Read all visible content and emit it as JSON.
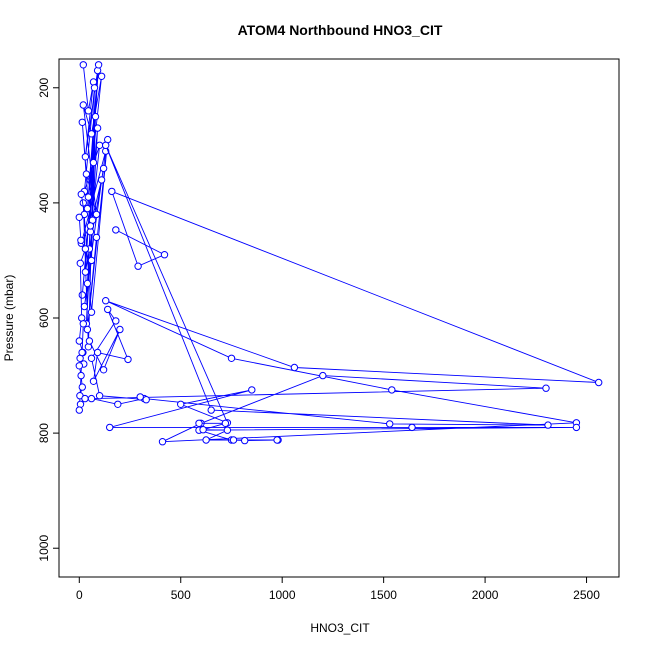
{
  "chart_data": {
    "type": "line",
    "title": "ATOM4 Northbound HNO3_CIT",
    "xlabel": "HNO3_CIT",
    "ylabel": "Pressure (mbar)",
    "xlim": [
      -100,
      2660
    ],
    "ylim": [
      1050,
      150
    ],
    "y_reversed": true,
    "x_ticks": [
      0,
      500,
      1000,
      1500,
      2000,
      2500
    ],
    "y_ticks": [
      200,
      400,
      600,
      800,
      1000
    ],
    "grid": false,
    "legend": "none",
    "series_color": "#0000ff",
    "marker": "open-circle",
    "series": [
      {
        "x": [
          20,
          45,
          70,
          30,
          90,
          40,
          110,
          60,
          20,
          85,
          35,
          15,
          55,
          100,
          25,
          75,
          50,
          120,
          30,
          95,
          45,
          65,
          10,
          130,
          40,
          80,
          60,
          25,
          110,
          55,
          35,
          90,
          15,
          70,
          45,
          20,
          60,
          140,
          40,
          85
        ],
        "y": [
          160,
          240,
          190,
          320,
          170,
          410,
          180,
          280,
          230,
          420,
          350,
          260,
          450,
          300,
          380,
          200,
          480,
          340,
          520,
          160,
          390,
          430,
          470,
          310,
          540,
          250,
          500,
          580,
          360,
          440,
          610,
          270,
          560,
          330,
          650,
          400,
          590,
          290,
          620,
          460
        ]
      },
      {
        "x": [
          10,
          25,
          0,
          8,
          30,
          5,
          12,
          0,
          18,
          4,
          22,
          0,
          9,
          15,
          3,
          28,
          6,
          0,
          14,
          20
        ],
        "y": [
          385,
          420,
          425,
          465,
          480,
          505,
          600,
          640,
          660,
          670,
          680,
          683,
          700,
          720,
          735,
          740,
          750,
          760,
          660,
          610
        ]
      },
      {
        "x": [
          180,
          420,
          290,
          160,
          2560,
          1060,
          130,
          750,
          1540,
          2450,
          410,
          600,
          1200,
          2300,
          60,
          190,
          320,
          1530,
          2310,
          650,
          130,
          730,
          500,
          850,
          150,
          1640,
          2450,
          590,
          750,
          980
        ],
        "y": [
          447,
          490,
          510,
          380,
          712,
          686,
          570,
          670,
          725,
          782,
          815,
          783,
          700,
          722,
          740,
          750,
          740,
          784,
          786,
          760,
          300,
          782,
          750,
          725,
          790,
          790,
          790,
          795,
          812,
          812
        ]
      },
      {
        "x": [
          590,
          720,
          610,
          730,
          625,
          760,
          815,
          975
        ],
        "y": [
          783,
          783,
          794,
          795,
          812,
          812,
          813,
          812
        ]
      },
      {
        "x": [
          300,
          330,
          100,
          60,
          180,
          140,
          240,
          90,
          70,
          200,
          120,
          50
        ],
        "y": [
          737,
          742,
          735,
          670,
          605,
          585,
          672,
          660,
          710,
          620,
          690,
          640
        ]
      }
    ]
  }
}
